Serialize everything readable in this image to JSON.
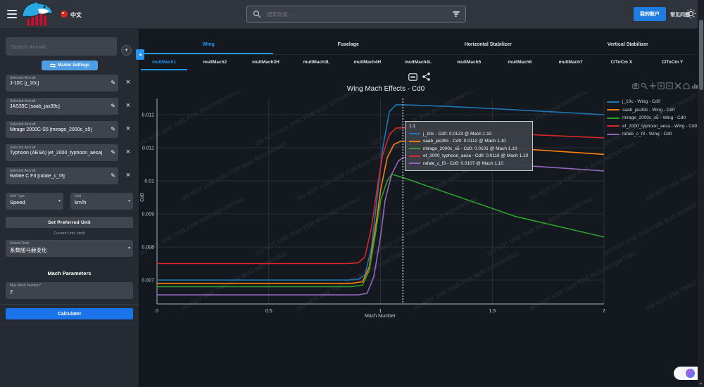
{
  "header": {
    "language": "中文",
    "search_placeholder": "搜索玩家...",
    "account_button": "我的账户",
    "faq_link": "常见问题"
  },
  "sidebar": {
    "search_placeholder": "Search Aircraft",
    "add_button": "+",
    "master_settings": "Master Settings",
    "aircraft_card_label": "Selected Aircraft",
    "aircraft": [
      "J-10C [j_10c]",
      "JAS39C [saab_jas39c]",
      "Mirage 2000C-S5 [mirage_2000c_s5]",
      "Typhoon (AESA) [ef_2000_typhoon_aesa]",
      "Rafale C F3 [rafale_c_f3]"
    ],
    "unit_type_label": "Unit Type",
    "unit_type_value": "Speed",
    "unit_label": "Unit",
    "unit_value": "km/h",
    "set_preferred_unit": "Set Preferred Unit",
    "current_unit": "Current Unit: km/h",
    "select_chart_label": "Select Chart",
    "select_chart_value": "系数随马赫变化",
    "mach_parameters_title": "Mach Parameters",
    "max_mach_label": "Max Mach Number*",
    "max_mach_value": "2",
    "calculate": "Calculate!"
  },
  "tabs": {
    "main": [
      {
        "label": "Wing",
        "active": true
      },
      {
        "label": "Fuselage",
        "active": false
      },
      {
        "label": "Horizontal Stabilizer",
        "active": false
      },
      {
        "label": "Vertical Stabilizer",
        "active": false
      }
    ],
    "sub": [
      {
        "label": "multMach1",
        "active": true
      },
      {
        "label": "multMach2",
        "active": false
      },
      {
        "label": "multMach3H",
        "active": false
      },
      {
        "label": "multMach3L",
        "active": false
      },
      {
        "label": "multMach4H",
        "active": false
      },
      {
        "label": "multMach4L",
        "active": false
      },
      {
        "label": "multMach5",
        "active": false
      },
      {
        "label": "multMach6",
        "active": false
      },
      {
        "label": "multMach7",
        "active": false
      },
      {
        "label": "ClToCm X",
        "active": false
      },
      {
        "label": "ClToCm Y",
        "active": false
      }
    ]
  },
  "chart": {
    "title": "Wing Mach Effects - Cd0",
    "watermark": "DO NOT USE THIS FOR BUG REPORTING",
    "modebar_icons": [
      "camera",
      "zoom",
      "pan",
      "zoom-in",
      "zoom-out",
      "autoscale",
      "reset-axes",
      "plotly-logo"
    ],
    "tooltip": {
      "header": "1.1",
      "rows": [
        {
          "color": "#1f77b4",
          "text": "j_10c - Cd0: 0.0123 @ Mach 1.10"
        },
        {
          "color": "#ff7f0e",
          "text": "saab_jas39c - Cd0: 0.0112 @ Mach 1.10"
        },
        {
          "color": "#2ca02c",
          "text": "mirage_2000c_s5 - Cd0: 0.0101 @ Mach 1.10"
        },
        {
          "color": "#d62728",
          "text": "ef_2000_typhoon_aesa - Cd0: 0.0116 @ Mach 1.10"
        },
        {
          "color": "#9467bd",
          "text": "rafale_c_f3 - Cd0: 0.0107 @ Mach 1.10"
        }
      ]
    }
  },
  "chart_data": {
    "type": "line",
    "title": "Wing Mach Effects - Cd0",
    "xlabel": "Mach Number",
    "ylabel": "Cd0",
    "xlim": [
      0,
      2
    ],
    "ylim": [
      0.0063,
      0.01255
    ],
    "xticks": [
      0,
      0.5,
      1,
      1.5,
      2
    ],
    "yticks": [
      0.007,
      0.008,
      0.009,
      0.01,
      0.011,
      0.012
    ],
    "grid": true,
    "legend_position": "right",
    "spike_x": 1.1,
    "series": [
      {
        "name": "j_10c - Wing - Cd0",
        "color": "#1f77b4",
        "points": [
          [
            0,
            0.007
          ],
          [
            0.85,
            0.007
          ],
          [
            0.9,
            0.00702
          ],
          [
            0.93,
            0.00715
          ],
          [
            0.96,
            0.008
          ],
          [
            0.99,
            0.0098
          ],
          [
            1.01,
            0.011
          ],
          [
            1.04,
            0.0121
          ],
          [
            1.07,
            0.0123
          ],
          [
            1.1,
            0.0123
          ],
          [
            1.3,
            0.01225
          ],
          [
            1.6,
            0.01215
          ],
          [
            2,
            0.012
          ]
        ]
      },
      {
        "name": "saab_jas39c - Wing - Cd0",
        "color": "#ff7f0e",
        "points": [
          [
            0,
            0.0069
          ],
          [
            0.87,
            0.0069
          ],
          [
            0.92,
            0.00695
          ],
          [
            0.95,
            0.0074
          ],
          [
            0.98,
            0.0087
          ],
          [
            1.0,
            0.0097
          ],
          [
            1.03,
            0.0107
          ],
          [
            1.06,
            0.0111
          ],
          [
            1.09,
            0.0112
          ],
          [
            1.1,
            0.0112
          ],
          [
            1.3,
            0.01113
          ],
          [
            1.6,
            0.01098
          ],
          [
            2,
            0.0108
          ]
        ]
      },
      {
        "name": "mirage_2000c_s5 - Wing - Cd0",
        "color": "#2ca02c",
        "points": [
          [
            0,
            0.0068
          ],
          [
            0.87,
            0.0068
          ],
          [
            0.92,
            0.00685
          ],
          [
            0.95,
            0.0073
          ],
          [
            0.98,
            0.0085
          ],
          [
            1.0,
            0.0094
          ],
          [
            1.03,
            0.01
          ],
          [
            1.05,
            0.0102
          ],
          [
            1.1,
            0.0101
          ],
          [
            1.3,
            0.00963
          ],
          [
            1.6,
            0.00893
          ],
          [
            2,
            0.0083
          ]
        ]
      },
      {
        "name": "ef_2000_typhoon_aesa - Wing - Cd0",
        "color": "#d62728",
        "points": [
          [
            0,
            0.0075
          ],
          [
            0.85,
            0.0075
          ],
          [
            0.9,
            0.00752
          ],
          [
            0.93,
            0.0077
          ],
          [
            0.96,
            0.0086
          ],
          [
            0.99,
            0.01
          ],
          [
            1.01,
            0.0108
          ],
          [
            1.04,
            0.0114
          ],
          [
            1.07,
            0.0116
          ],
          [
            1.1,
            0.0116
          ],
          [
            1.3,
            0.01152
          ],
          [
            1.6,
            0.01142
          ],
          [
            2,
            0.0113
          ]
        ]
      },
      {
        "name": "rafale_c_f3 - Wing - Cd0",
        "color": "#9467bd",
        "points": [
          [
            0,
            0.00655
          ],
          [
            0.9,
            0.00655
          ],
          [
            0.94,
            0.0066
          ],
          [
            0.97,
            0.0071
          ],
          [
            1.0,
            0.0083
          ],
          [
            1.02,
            0.0094
          ],
          [
            1.05,
            0.0102
          ],
          [
            1.08,
            0.0106
          ],
          [
            1.1,
            0.0107
          ],
          [
            1.3,
            0.01062
          ],
          [
            1.6,
            0.01048
          ],
          [
            2,
            0.0103
          ]
        ]
      }
    ]
  }
}
